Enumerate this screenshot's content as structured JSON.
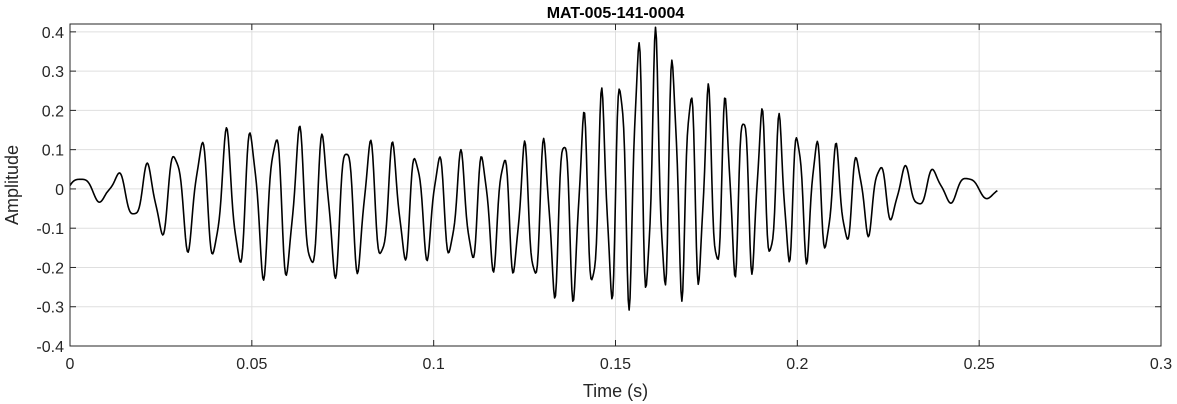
{
  "chart_data": {
    "type": "line",
    "title": "MAT-005-141-0004",
    "xlabel": "Time (s)",
    "ylabel": "Amplitude",
    "xlim": [
      0,
      0.3
    ],
    "ylim": [
      -0.4,
      0.42
    ],
    "xticks": [
      0,
      0.05,
      0.1,
      0.15,
      0.2,
      0.25,
      0.3
    ],
    "xtick_labels": [
      "0",
      "0.05",
      "0.1",
      "0.15",
      "0.2",
      "0.25",
      "0.3"
    ],
    "yticks": [
      -0.4,
      -0.3,
      -0.2,
      -0.1,
      0,
      0.1,
      0.2,
      0.3,
      0.4
    ],
    "ytick_labels": [
      "-0.4",
      "-0.3",
      "-0.2",
      "-0.1",
      "0",
      "0.1",
      "0.2",
      "0.3",
      "0.4"
    ],
    "grid": true,
    "line_color": "#000000",
    "series": [
      {
        "x_start": 0,
        "x_end": 0.255,
        "sample_rate_hz": 4000,
        "envelope": {
          "x": [
            0,
            0.01,
            0.02,
            0.03,
            0.04,
            0.05,
            0.06,
            0.07,
            0.08,
            0.09,
            0.1,
            0.11,
            0.12,
            0.13,
            0.14,
            0.15,
            0.155,
            0.16,
            0.165,
            0.17,
            0.18,
            0.19,
            0.2,
            0.21,
            0.22,
            0.23,
            0.24,
            0.25,
            0.255
          ],
          "upper": [
            0.035,
            0.035,
            0.06,
            0.12,
            0.15,
            0.17,
            0.17,
            0.15,
            0.14,
            0.12,
            0.1,
            0.1,
            0.11,
            0.14,
            0.2,
            0.3,
            0.42,
            0.42,
            0.38,
            0.3,
            0.25,
            0.22,
            0.17,
            0.12,
            0.08,
            0.06,
            0.05,
            0.03,
            0.02
          ],
          "lower": [
            -0.035,
            -0.035,
            -0.1,
            -0.15,
            -0.2,
            -0.23,
            -0.24,
            -0.24,
            -0.22,
            -0.2,
            -0.18,
            -0.2,
            -0.22,
            -0.28,
            -0.3,
            -0.31,
            -0.31,
            -0.32,
            -0.3,
            -0.28,
            -0.24,
            -0.22,
            -0.2,
            -0.17,
            -0.12,
            -0.06,
            -0.04,
            -0.03,
            -0.02
          ]
        },
        "carrier_hz": {
          "x": [
            0,
            0.02,
            0.05,
            0.1,
            0.14,
            0.16,
            0.2,
            0.22,
            0.255
          ],
          "f": [
            75,
            130,
            150,
            160,
            190,
            210,
            200,
            160,
            75
          ]
        }
      }
    ]
  }
}
